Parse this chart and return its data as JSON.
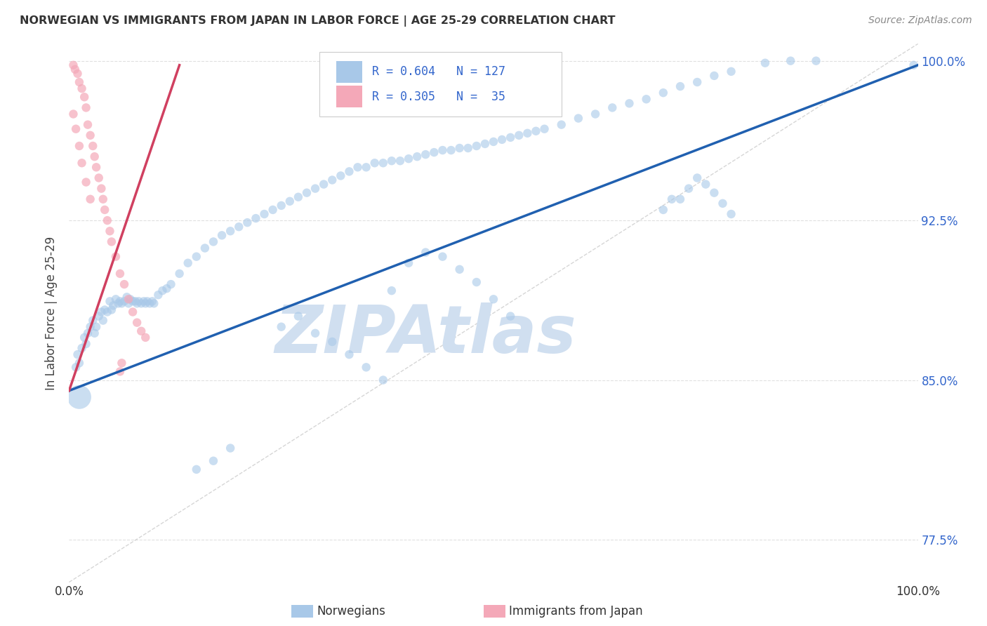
{
  "title": "NORWEGIAN VS IMMIGRANTS FROM JAPAN IN LABOR FORCE | AGE 25-29 CORRELATION CHART",
  "source": "Source: ZipAtlas.com",
  "ylabel": "In Labor Force | Age 25-29",
  "xlim": [
    0.0,
    1.0
  ],
  "ylim": [
    0.755,
    1.008
  ],
  "y_ticks": [
    0.775,
    0.85,
    0.925,
    1.0
  ],
  "y_tick_labels_right": [
    "77.5%",
    "85.0%",
    "92.5%",
    "100.0%"
  ],
  "x_tick_labels": [
    "0.0%",
    "",
    "",
    "",
    "",
    "",
    "",
    "",
    "",
    "",
    "100.0%"
  ],
  "legend_blue_label": "Norwegians",
  "legend_pink_label": "Immigrants from Japan",
  "R_blue": 0.604,
  "N_blue": 127,
  "R_pink": 0.305,
  "N_pink": 35,
  "blue_color": "#A8C8E8",
  "pink_color": "#F4A8B8",
  "blue_line_color": "#2060B0",
  "pink_line_color": "#D04060",
  "ref_line_color": "#CCCCCC",
  "watermark": "ZIPAtlas",
  "watermark_color": "#D0DFF0",
  "grid_color": "#DDDDDD",
  "title_color": "#333333",
  "right_tick_color": "#3366CC",
  "blue_line": {
    "x0": 0.0,
    "y0": 0.845,
    "x1": 1.0,
    "y1": 0.998
  },
  "pink_line": {
    "x0": 0.0,
    "y0": 0.845,
    "x1": 0.13,
    "y1": 0.998
  },
  "ref_line": {
    "x0": 0.0,
    "y0": 0.755,
    "x1": 1.0,
    "y1": 1.008
  },
  "blue_dots": {
    "x": [
      0.008,
      0.01,
      0.012,
      0.015,
      0.018,
      0.02,
      0.022,
      0.025,
      0.028,
      0.03,
      0.032,
      0.035,
      0.038,
      0.04,
      0.042,
      0.045,
      0.048,
      0.05,
      0.052,
      0.055,
      0.058,
      0.06,
      0.062,
      0.065,
      0.068,
      0.07,
      0.072,
      0.075,
      0.078,
      0.08,
      0.082,
      0.085,
      0.088,
      0.09,
      0.092,
      0.095,
      0.098,
      0.1,
      0.105,
      0.11,
      0.115,
      0.12,
      0.13,
      0.14,
      0.15,
      0.16,
      0.17,
      0.18,
      0.19,
      0.2,
      0.21,
      0.22,
      0.23,
      0.24,
      0.25,
      0.26,
      0.27,
      0.28,
      0.29,
      0.3,
      0.31,
      0.32,
      0.33,
      0.34,
      0.35,
      0.36,
      0.37,
      0.38,
      0.39,
      0.4,
      0.41,
      0.42,
      0.43,
      0.44,
      0.45,
      0.46,
      0.47,
      0.48,
      0.49,
      0.5,
      0.51,
      0.52,
      0.53,
      0.54,
      0.55,
      0.56,
      0.58,
      0.6,
      0.62,
      0.64,
      0.66,
      0.68,
      0.7,
      0.72,
      0.74,
      0.76,
      0.78,
      0.82,
      0.85,
      0.88,
      0.7,
      0.71,
      0.72,
      0.73,
      0.74,
      0.75,
      0.76,
      0.77,
      0.78,
      0.38,
      0.4,
      0.42,
      0.44,
      0.46,
      0.48,
      0.5,
      0.52,
      0.25,
      0.27,
      0.29,
      0.31,
      0.33,
      0.35,
      0.37,
      0.15,
      0.17,
      0.19,
      0.012,
      0.995
    ],
    "y": [
      0.856,
      0.862,
      0.858,
      0.865,
      0.87,
      0.867,
      0.872,
      0.875,
      0.878,
      0.872,
      0.875,
      0.88,
      0.882,
      0.878,
      0.883,
      0.882,
      0.887,
      0.883,
      0.885,
      0.888,
      0.886,
      0.887,
      0.886,
      0.887,
      0.889,
      0.886,
      0.888,
      0.887,
      0.887,
      0.886,
      0.887,
      0.886,
      0.887,
      0.886,
      0.887,
      0.886,
      0.887,
      0.886,
      0.89,
      0.892,
      0.893,
      0.895,
      0.9,
      0.905,
      0.908,
      0.912,
      0.915,
      0.918,
      0.92,
      0.922,
      0.924,
      0.926,
      0.928,
      0.93,
      0.932,
      0.934,
      0.936,
      0.938,
      0.94,
      0.942,
      0.944,
      0.946,
      0.948,
      0.95,
      0.95,
      0.952,
      0.952,
      0.953,
      0.953,
      0.954,
      0.955,
      0.956,
      0.957,
      0.958,
      0.958,
      0.959,
      0.959,
      0.96,
      0.961,
      0.962,
      0.963,
      0.964,
      0.965,
      0.966,
      0.967,
      0.968,
      0.97,
      0.973,
      0.975,
      0.978,
      0.98,
      0.982,
      0.985,
      0.988,
      0.99,
      0.993,
      0.995,
      0.999,
      1.0,
      1.0,
      0.93,
      0.935,
      0.935,
      0.94,
      0.945,
      0.942,
      0.938,
      0.933,
      0.928,
      0.892,
      0.905,
      0.91,
      0.908,
      0.902,
      0.896,
      0.888,
      0.88,
      0.875,
      0.88,
      0.872,
      0.868,
      0.862,
      0.856,
      0.85,
      0.808,
      0.812,
      0.818,
      0.842,
      0.998
    ],
    "sizes": [
      80,
      80,
      80,
      80,
      80,
      80,
      80,
      80,
      80,
      80,
      80,
      80,
      80,
      80,
      80,
      80,
      80,
      80,
      80,
      80,
      80,
      80,
      80,
      80,
      80,
      80,
      80,
      80,
      80,
      80,
      80,
      80,
      80,
      80,
      80,
      80,
      80,
      80,
      80,
      80,
      80,
      80,
      80,
      80,
      80,
      80,
      80,
      80,
      80,
      80,
      80,
      80,
      80,
      80,
      80,
      80,
      80,
      80,
      80,
      80,
      80,
      80,
      80,
      80,
      80,
      80,
      80,
      80,
      80,
      80,
      80,
      80,
      80,
      80,
      80,
      80,
      80,
      80,
      80,
      80,
      80,
      80,
      80,
      80,
      80,
      80,
      80,
      80,
      80,
      80,
      80,
      80,
      80,
      80,
      80,
      80,
      80,
      80,
      80,
      80,
      80,
      80,
      80,
      80,
      80,
      80,
      80,
      80,
      80,
      80,
      80,
      80,
      80,
      80,
      80,
      80,
      80,
      80,
      80,
      80,
      80,
      80,
      80,
      80,
      80,
      80,
      80,
      600,
      80
    ]
  },
  "pink_dots": {
    "x": [
      0.005,
      0.007,
      0.01,
      0.012,
      0.015,
      0.018,
      0.02,
      0.022,
      0.025,
      0.028,
      0.03,
      0.032,
      0.035,
      0.038,
      0.04,
      0.042,
      0.045,
      0.048,
      0.05,
      0.055,
      0.06,
      0.065,
      0.07,
      0.075,
      0.08,
      0.085,
      0.09,
      0.005,
      0.008,
      0.012,
      0.015,
      0.02,
      0.025,
      0.06,
      0.062
    ],
    "y": [
      0.998,
      0.996,
      0.994,
      0.99,
      0.987,
      0.983,
      0.978,
      0.97,
      0.965,
      0.96,
      0.955,
      0.95,
      0.945,
      0.94,
      0.935,
      0.93,
      0.925,
      0.92,
      0.915,
      0.908,
      0.9,
      0.895,
      0.888,
      0.882,
      0.877,
      0.873,
      0.87,
      0.975,
      0.968,
      0.96,
      0.952,
      0.943,
      0.935,
      0.854,
      0.858
    ]
  }
}
